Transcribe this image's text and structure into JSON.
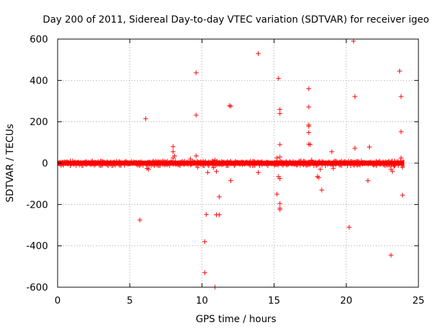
{
  "chart_data": {
    "type": "scatter",
    "title": "Day 200 of 2011, Sidereal Day-to-day VTEC variation (SDTVAR) for receiver igeo",
    "xlabel": "GPS time / hours",
    "ylabel": "SDTVAR / TECUs",
    "xlim": [
      0,
      25
    ],
    "ylim": [
      -600,
      600
    ],
    "xticks": [
      0,
      5,
      10,
      15,
      20,
      25
    ],
    "yticks": [
      -600,
      -400,
      -200,
      0,
      200,
      400,
      600
    ],
    "xtick_labels": [
      "0",
      "5",
      "10",
      "15",
      "20",
      "25"
    ],
    "ytick_labels": [
      "-600",
      "-400",
      "-200",
      "0",
      "200",
      "400",
      "600"
    ],
    "grid": true,
    "marker": "+",
    "color": "#ff0000",
    "band": {
      "name": "dense points near zero",
      "x_range": [
        0,
        24
      ],
      "y_range": [
        -12,
        12
      ]
    },
    "series": [
      {
        "name": "outliers",
        "points": [
          [
            5.7,
            -275
          ],
          [
            6.1,
            215
          ],
          [
            6.2,
            -25
          ],
          [
            6.3,
            -30
          ],
          [
            8.0,
            80
          ],
          [
            8.0,
            55
          ],
          [
            8.0,
            25
          ],
          [
            8.1,
            35
          ],
          [
            9.2,
            20
          ],
          [
            9.5,
            5
          ],
          [
            9.6,
            35
          ],
          [
            9.6,
            437
          ],
          [
            9.6,
            232
          ],
          [
            9.7,
            -20
          ],
          [
            10.2,
            -530
          ],
          [
            10.2,
            -380
          ],
          [
            10.3,
            -248
          ],
          [
            10.4,
            -45
          ],
          [
            10.8,
            -22
          ],
          [
            10.9,
            15
          ],
          [
            10.9,
            -600
          ],
          [
            11.0,
            -40
          ],
          [
            11.0,
            -250
          ],
          [
            11.2,
            -250
          ],
          [
            11.2,
            -163
          ],
          [
            11.9,
            278
          ],
          [
            12.0,
            275
          ],
          [
            12.0,
            -85
          ],
          [
            13.9,
            530
          ],
          [
            13.9,
            -45
          ],
          [
            15.1,
            -5
          ],
          [
            15.2,
            25
          ],
          [
            15.2,
            -150
          ],
          [
            15.3,
            410
          ],
          [
            15.3,
            -65
          ],
          [
            15.4,
            260
          ],
          [
            15.4,
            240
          ],
          [
            15.4,
            90
          ],
          [
            15.4,
            30
          ],
          [
            15.4,
            -75
          ],
          [
            15.4,
            -195
          ],
          [
            15.4,
            -218
          ],
          [
            15.4,
            -225
          ],
          [
            17.4,
            360
          ],
          [
            17.4,
            272
          ],
          [
            17.4,
            185
          ],
          [
            17.4,
            178
          ],
          [
            17.4,
            148
          ],
          [
            17.4,
            92
          ],
          [
            17.5,
            90
          ],
          [
            17.6,
            15
          ],
          [
            17.9,
            -5
          ],
          [
            18.0,
            -65
          ],
          [
            18.1,
            -70
          ],
          [
            18.2,
            -30
          ],
          [
            18.3,
            -130
          ],
          [
            19.0,
            55
          ],
          [
            19.1,
            -25
          ],
          [
            20.2,
            -310
          ],
          [
            20.5,
            590
          ],
          [
            20.6,
            322
          ],
          [
            20.6,
            72
          ],
          [
            21.5,
            -85
          ],
          [
            21.6,
            78
          ],
          [
            21.9,
            -10
          ],
          [
            23.1,
            -445
          ],
          [
            23.1,
            -30
          ],
          [
            23.2,
            -40
          ],
          [
            23.3,
            -15
          ],
          [
            23.7,
            445
          ],
          [
            23.8,
            322
          ],
          [
            23.8,
            152
          ],
          [
            23.8,
            25
          ],
          [
            23.9,
            -155
          ],
          [
            23.9,
            -20
          ]
        ]
      }
    ]
  }
}
